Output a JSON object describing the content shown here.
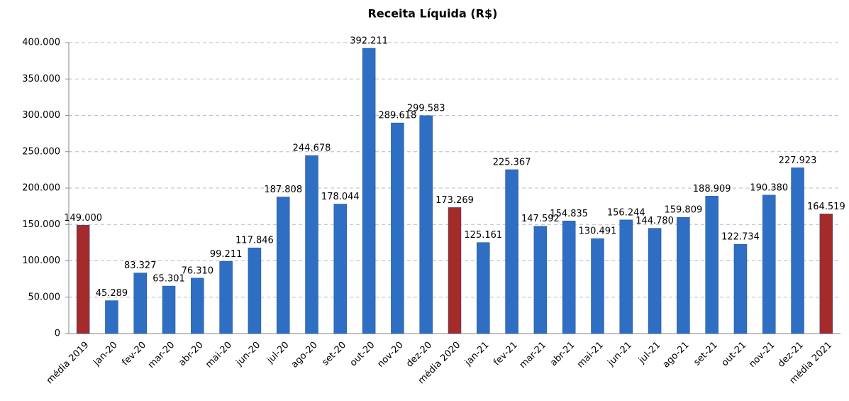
{
  "chart_data": {
    "type": "bar",
    "title": "Receita Líquida (R$)",
    "categories": [
      "média 2019",
      "jan-20",
      "fev-20",
      "mar-20",
      "abr-20",
      "mai-20",
      "jun-20",
      "jul-20",
      "ago-20",
      "set-20",
      "out-20",
      "nov-20",
      "dez-20",
      "média 2020",
      "jan-21",
      "fev-21",
      "mar-21",
      "abr-21",
      "mai-21",
      "jun-21",
      "jul-21",
      "ago-21",
      "set-21",
      "out-21",
      "nov-21",
      "dez-21",
      "média 2021"
    ],
    "values": [
      149000,
      45289,
      83327,
      65301,
      76310,
      99211,
      117846,
      187808,
      244678,
      178044,
      392211,
      289618,
      299583,
      173269,
      125161,
      225367,
      147592,
      154835,
      130491,
      156244,
      144780,
      159809,
      188909,
      122734,
      190380,
      227923,
      164519
    ],
    "value_labels": [
      "149.000",
      "45.289",
      "83.327",
      "65.301",
      "76.310",
      "99.211",
      "117.846",
      "187.808",
      "244.678",
      "178.044",
      "392.211",
      "289.618",
      "299.583",
      "173.269",
      "125.161",
      "225.367",
      "147.592",
      "154.835",
      "130.491",
      "156.244",
      "144.780",
      "159.809",
      "188.909",
      "122.734",
      "190.380",
      "227.923",
      "164.519"
    ],
    "colors": [
      "#a52a2a",
      "#2e6fc4",
      "#2e6fc4",
      "#2e6fc4",
      "#2e6fc4",
      "#2e6fc4",
      "#2e6fc4",
      "#2e6fc4",
      "#2e6fc4",
      "#2e6fc4",
      "#2e6fc4",
      "#2e6fc4",
      "#2e6fc4",
      "#a52a2a",
      "#2e6fc4",
      "#2e6fc4",
      "#2e6fc4",
      "#2e6fc4",
      "#2e6fc4",
      "#2e6fc4",
      "#2e6fc4",
      "#2e6fc4",
      "#2e6fc4",
      "#2e6fc4",
      "#2e6fc4",
      "#2e6fc4",
      "#a52a2a"
    ],
    "ylim": [
      0,
      400000
    ],
    "yticks": [
      0,
      {
        "value": 50000,
        "label": "50.000"
      },
      {
        "value": 100000,
        "label": "100.000"
      },
      {
        "value": 150000,
        "label": "150.000"
      },
      {
        "value": 200000,
        "label": "200.000"
      },
      {
        "value": 250000,
        "label": "250.000"
      },
      {
        "value": 300000,
        "label": "300.000"
      },
      {
        "value": 350000,
        "label": "350.000"
      },
      {
        "value": 400000,
        "label": "400.000"
      }
    ],
    "grid": true
  }
}
